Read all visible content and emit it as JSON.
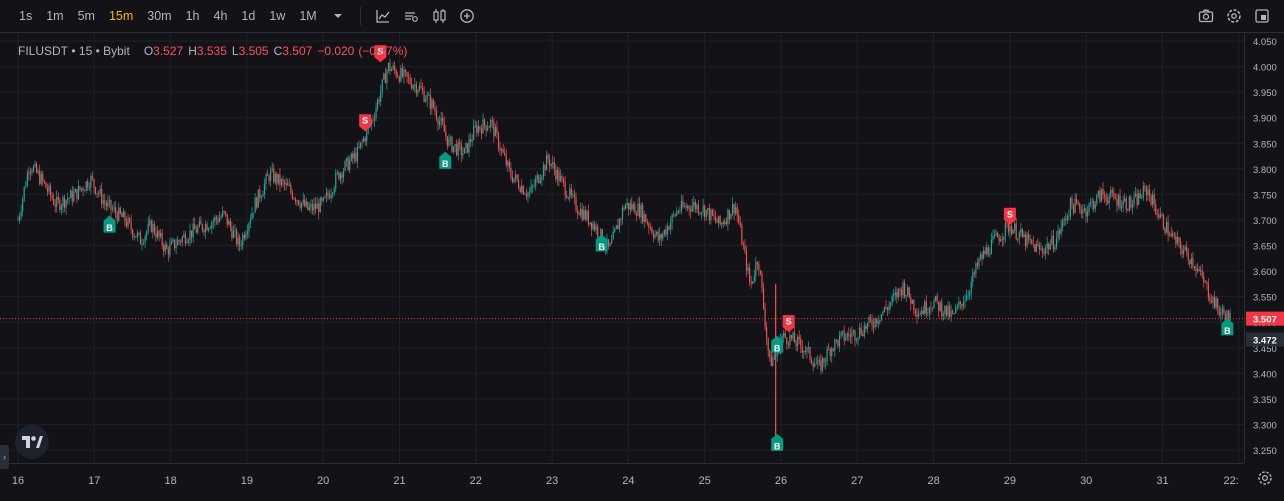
{
  "toolbar": {
    "timeframes": [
      "1s",
      "1m",
      "5m",
      "15m",
      "30m",
      "1h",
      "4h",
      "1d",
      "1w",
      "1M"
    ],
    "active_timeframe": "15m",
    "icons": [
      "chevron-down-icon",
      "indicators-icon",
      "chart-type-icon",
      "candles-icon",
      "add-compare-icon"
    ],
    "right_icons": [
      "camera-icon",
      "settings-icon",
      "fullscreen-icon"
    ]
  },
  "legend": {
    "symbol": "FILUSDT",
    "interval": "15",
    "exchange": "Bybit",
    "open_label": "O",
    "open": "3.527",
    "high_label": "H",
    "high": "3.535",
    "low_label": "L",
    "low": "3.505",
    "close_label": "C",
    "close": "3.507",
    "change": "−0.020",
    "change_pct": "(−0.57%)"
  },
  "colors": {
    "background": "#131317",
    "grid": "#1e2029",
    "up": "#26a69a",
    "down": "#ef5350",
    "buy_marker": "#089981",
    "sell_marker": "#f23645",
    "last_price_line": "#f23645",
    "active_timeframe": "#f0b90b"
  },
  "chart_data": {
    "type": "line",
    "title": "",
    "xlabel": "",
    "ylabel": "",
    "ylim": [
      3.23,
      4.06
    ],
    "price_ticks": [
      "4.050",
      "4.000",
      "3.950",
      "3.900",
      "3.850",
      "3.800",
      "3.750",
      "3.700",
      "3.650",
      "3.600",
      "3.550",
      "3.500",
      "3.450",
      "3.400",
      "3.350",
      "3.300",
      "3.250"
    ],
    "time_ticks": [
      "16",
      "17",
      "18",
      "19",
      "20",
      "21",
      "22",
      "23",
      "24",
      "25",
      "26",
      "27",
      "28",
      "29",
      "30",
      "31",
      "22:"
    ],
    "last_price": "3.507",
    "crosshair_price": "3.472",
    "series": [
      {
        "x": [
          16.0,
          16.15,
          16.3,
          16.5,
          16.75,
          16.95,
          17.15,
          17.4,
          17.6,
          17.75,
          17.95,
          18.2,
          18.45,
          18.7,
          18.9,
          19.1,
          19.3,
          19.55,
          19.8,
          20.0,
          20.2,
          20.45,
          20.65,
          20.85,
          21.05,
          21.25,
          21.45,
          21.65,
          21.85,
          22.0,
          22.2,
          22.45,
          22.7,
          22.95,
          23.1,
          23.3,
          23.55,
          23.75,
          23.95,
          24.15,
          24.4,
          24.65,
          24.85,
          25.0,
          25.2,
          25.4,
          25.6,
          25.7,
          25.85,
          25.95,
          26.0,
          26.1,
          26.3,
          26.5,
          26.65,
          26.8,
          27.0,
          27.2,
          27.4,
          27.6,
          27.8,
          28.0,
          28.25,
          28.45,
          28.6,
          28.8,
          29.0,
          29.2,
          29.4,
          29.6,
          29.8,
          30.0,
          30.2,
          30.4,
          30.6,
          30.8,
          30.95,
          31.15,
          31.4,
          31.6,
          31.75,
          31.9
        ],
        "y": [
          3.7,
          3.81,
          3.78,
          3.73,
          3.75,
          3.78,
          3.73,
          3.7,
          3.66,
          3.69,
          3.64,
          3.67,
          3.69,
          3.71,
          3.65,
          3.73,
          3.79,
          3.76,
          3.72,
          3.73,
          3.79,
          3.83,
          3.9,
          4.0,
          3.98,
          3.96,
          3.92,
          3.85,
          3.83,
          3.88,
          3.89,
          3.79,
          3.75,
          3.82,
          3.78,
          3.73,
          3.69,
          3.64,
          3.73,
          3.72,
          3.66,
          3.72,
          3.73,
          3.72,
          3.69,
          3.73,
          3.57,
          3.63,
          3.42,
          3.44,
          3.47,
          3.47,
          3.45,
          3.41,
          3.45,
          3.47,
          3.48,
          3.5,
          3.53,
          3.57,
          3.52,
          3.54,
          3.51,
          3.56,
          3.62,
          3.66,
          3.69,
          3.66,
          3.64,
          3.66,
          3.73,
          3.72,
          3.75,
          3.74,
          3.73,
          3.76,
          3.71,
          3.66,
          3.62,
          3.56,
          3.52,
          3.507
        ]
      }
    ],
    "markers": [
      {
        "type": "B",
        "label": "B",
        "x": 17.2,
        "y": 3.685
      },
      {
        "type": "S",
        "label": "S",
        "x": 20.55,
        "y": 3.895
      },
      {
        "type": "S",
        "label": "S",
        "x": 20.75,
        "y": 4.03
      },
      {
        "type": "B",
        "label": "B",
        "x": 21.6,
        "y": 3.81
      },
      {
        "type": "B",
        "label": "B",
        "x": 23.65,
        "y": 3.648
      },
      {
        "type": "B",
        "label": "B",
        "x": 25.95,
        "y": 3.45
      },
      {
        "type": "S",
        "label": "S",
        "x": 26.1,
        "y": 3.502
      },
      {
        "type": "B",
        "label": "B",
        "x": 25.95,
        "y": 3.258
      },
      {
        "type": "S",
        "label": "S",
        "x": 29.0,
        "y": 3.712
      },
      {
        "type": "B",
        "label": "B",
        "x": 31.85,
        "y": 3.484
      }
    ]
  }
}
